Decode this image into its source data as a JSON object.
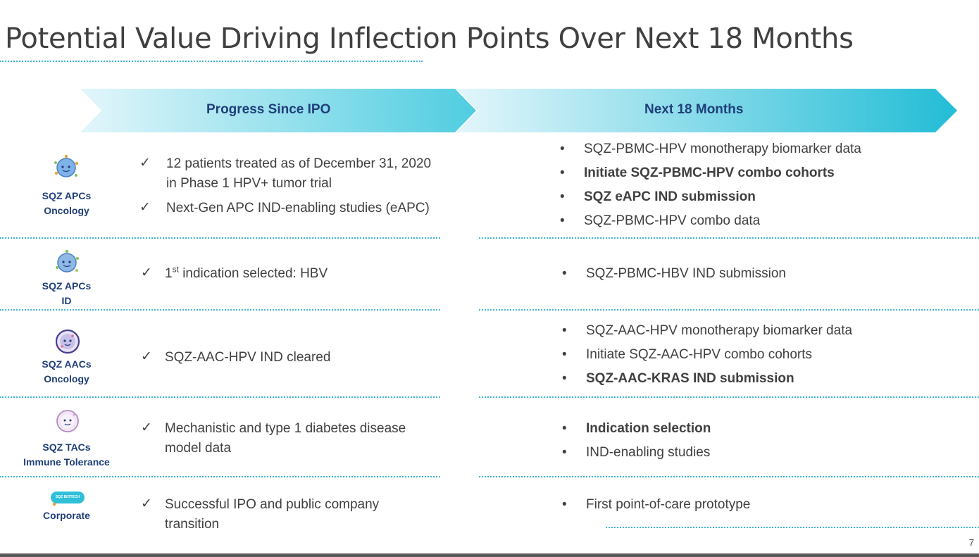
{
  "title": "Potential Value Driving Inflection Points Over Next 18 Months",
  "columns": {
    "left": "Progress Since IPO",
    "right": "Next 18 Months"
  },
  "colors": {
    "title_rule": "#3fb6d2",
    "arrow_light": "#e3f6fb",
    "arrow_dark": "#22bdd6",
    "label_blue": "#1f3f7a"
  },
  "rows": [
    {
      "icon": "cell-apc-icon",
      "label_line1": "SQZ APCs",
      "label_line2": "Oncology",
      "progress": [
        {
          "line1": "12 patients treated as of December 31, 2020",
          "line2": "in Phase 1 HPV+ tumor trial"
        },
        {
          "line1": "Next-Gen APC IND-enabling studies (eAPC)"
        }
      ],
      "next": [
        {
          "text": "SQZ-PBMC-HPV monotherapy biomarker data"
        },
        {
          "text": "Initiate SQZ-PBMC-HPV combo cohorts"
        },
        {
          "text": "SQZ eAPC IND submission"
        },
        {
          "text": "SQZ-PBMC-HPV combo data"
        }
      ]
    },
    {
      "icon": "cell-apc-id-icon",
      "label_line1": "SQZ APCs",
      "label_line2": "ID",
      "progress": [
        {
          "prefix": "1",
          "sup": "st",
          "rest": " indication selected: HBV"
        }
      ],
      "next": [
        {
          "text": "SQZ-PBMC-HBV IND submission"
        }
      ]
    },
    {
      "icon": "cell-aac-icon",
      "label_line1": "SQZ AACs",
      "label_line2": "Oncology",
      "progress": [
        {
          "line1": "SQZ-AAC-HPV IND cleared"
        }
      ],
      "next": [
        {
          "text": "SQZ-AAC-HPV monotherapy biomarker data"
        },
        {
          "text": "Initiate SQZ-AAC-HPV combo cohorts"
        },
        {
          "text": "SQZ-AAC-KRAS IND submission"
        }
      ]
    },
    {
      "icon": "cell-tac-icon",
      "label_line1": "SQZ TACs",
      "label_line2": "Immune Tolerance",
      "progress": [
        {
          "line1": "Mechanistic and type 1 diabetes disease",
          "line2": "model data"
        }
      ],
      "next": [
        {
          "text": "Indication selection"
        },
        {
          "text": "IND-enabling studies"
        }
      ]
    },
    {
      "icon": "sqz-biotech-logo-icon",
      "logo_text": "SQZ BIOTECH",
      "label_line1": "Corporate",
      "progress": [
        {
          "line1": "Successful IPO and public company",
          "line2": "transition"
        }
      ],
      "next": [
        {
          "text": "First point-of-care prototype"
        }
      ]
    }
  ],
  "check_glyph": "✓",
  "bullet_glyph": "•",
  "page_number": "7"
}
